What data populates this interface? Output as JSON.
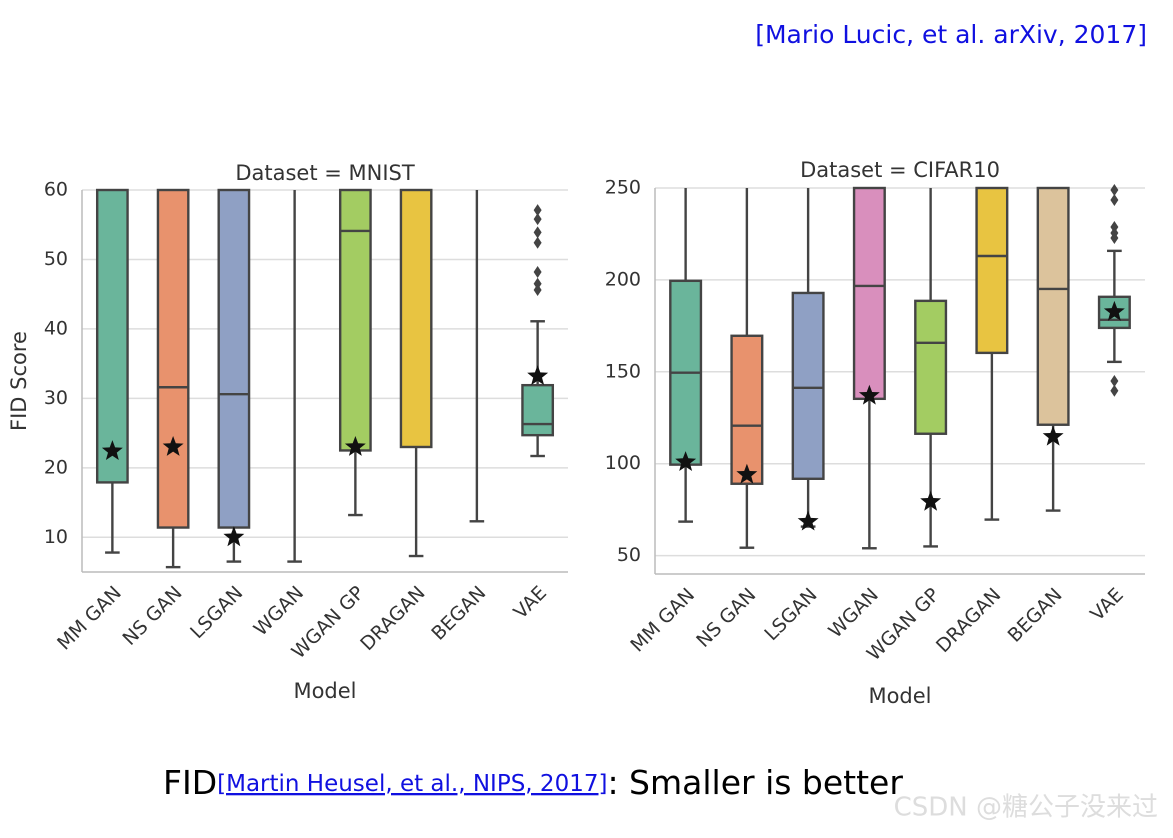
{
  "citation": "[Mario Lucic, et al. arXiv, 2017]",
  "caption": {
    "prefix": "FID",
    "reference": "[Martin Heusel, et al., NIPS, 2017]",
    "suffix": ": Smaller is better"
  },
  "watermark": "CSDN @糖公子没来过",
  "chart_data": [
    {
      "type": "box",
      "title": "Dataset = MNIST",
      "xlabel": "Model",
      "ylabel": "FID Score",
      "categories": [
        "MM GAN",
        "NS GAN",
        "LSGAN",
        "WGAN",
        "WGAN GP",
        "DRAGAN",
        "BEGAN",
        "VAE"
      ],
      "colors": [
        "#6ab59b",
        "#e8926d",
        "#8fa0c4",
        "#d98fbd",
        "#a3cc62",
        "#e8c441",
        "#dcc39c",
        "#6ab59b"
      ],
      "boxes": [
        {
          "whislo": 7.8,
          "q1": 17.9,
          "med": null,
          "q3": null,
          "whishi": null,
          "star": 22.4,
          "fliers": []
        },
        {
          "whislo": 5.7,
          "q1": 11.4,
          "med": 31.6,
          "q3": null,
          "whishi": null,
          "star": 23,
          "fliers": []
        },
        {
          "whislo": 6.5,
          "q1": 11.4,
          "med": 30.6,
          "q3": null,
          "whishi": null,
          "star": 10,
          "fliers": []
        },
        {
          "whislo": 6.5,
          "q1": null,
          "med": null,
          "q3": null,
          "whishi": null,
          "star": null,
          "fliers": []
        },
        {
          "whislo": 13.2,
          "q1": 22.5,
          "med": 54.1,
          "q3": null,
          "whishi": null,
          "star": 23,
          "fliers": []
        },
        {
          "whislo": 7.3,
          "q1": 23,
          "med": null,
          "q3": null,
          "whishi": null,
          "star": null,
          "fliers": []
        },
        {
          "whislo": 12.3,
          "q1": null,
          "med": null,
          "q3": null,
          "whishi": null,
          "star": null,
          "fliers": []
        },
        {
          "whislo": 21.7,
          "q1": 24.7,
          "med": 26.3,
          "q3": 31.9,
          "whishi": 41.1,
          "star": 33.2,
          "fliers": [
            45.6,
            46.5,
            48.2,
            52.4,
            53.9,
            55.8,
            57.1
          ]
        }
      ],
      "ylim": [
        5,
        60
      ],
      "yticks": [
        10,
        20,
        30,
        40,
        50,
        60
      ],
      "grid": true
    },
    {
      "type": "box",
      "title": "Dataset = CIFAR10",
      "xlabel": "Model",
      "categories": [
        "MM GAN",
        "NS GAN",
        "LSGAN",
        "WGAN",
        "WGAN GP",
        "DRAGAN",
        "BEGAN",
        "VAE"
      ],
      "colors": [
        "#6ab59b",
        "#e8926d",
        "#8fa0c4",
        "#d98fbd",
        "#a3cc62",
        "#e8c441",
        "#dcc39c",
        "#6ab59b"
      ],
      "boxes": [
        {
          "whislo": 68.5,
          "q1": 99.5,
          "med": 149.5,
          "q3": 199.5,
          "whishi": null,
          "star": 100.9,
          "fliers": []
        },
        {
          "whislo": 54.3,
          "q1": 89.1,
          "med": 120.7,
          "q3": 169.6,
          "whishi": null,
          "star": 94,
          "fliers": []
        },
        {
          "whislo": 65.8,
          "q1": 91.8,
          "med": 141.3,
          "q3": 192.9,
          "whishi": null,
          "star": 68.5,
          "fliers": []
        },
        {
          "whislo": 54,
          "q1": 135.3,
          "med": 196.7,
          "q3": null,
          "whishi": null,
          "star": 137,
          "fliers": []
        },
        {
          "whislo": 55,
          "q1": 116.3,
          "med": 165.8,
          "q3": 188.6,
          "whishi": null,
          "star": 79.3,
          "fliers": []
        },
        {
          "whislo": 69.6,
          "q1": 160.3,
          "med": 213,
          "q3": null,
          "whishi": null,
          "star": null,
          "fliers": []
        },
        {
          "whislo": 74.5,
          "q1": 121.2,
          "med": 195.1,
          "q3": null,
          "whishi": null,
          "star": 114.7,
          "fliers": []
        },
        {
          "whislo": 155.4,
          "q1": 173.9,
          "med": 178.3,
          "q3": 190.8,
          "whishi": 215.8,
          "star": 182.6,
          "fliers": [
            139.7,
            145,
            222.8,
            225.5,
            228.8,
            243.5,
            248.9
          ]
        }
      ],
      "ylim": [
        40,
        250
      ],
      "yticks": [
        50,
        100,
        150,
        200,
        250
      ],
      "grid": true
    }
  ]
}
